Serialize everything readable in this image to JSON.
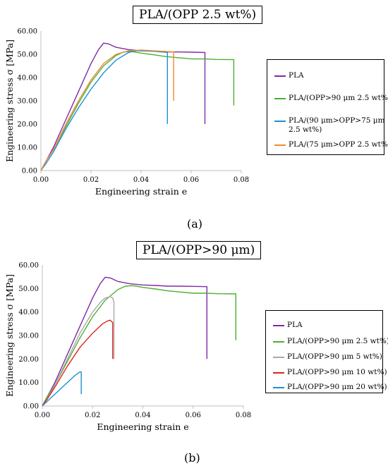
{
  "chart_data": [
    {
      "type": "line",
      "title": "PLA/(OPP 2.5 wt%)",
      "panel_label": "(a)",
      "xlabel": "Engineering strain e",
      "ylabel": "Engineering stress σ [MPa]",
      "xlim": [
        0,
        0.08
      ],
      "ylim": [
        0,
        60
      ],
      "xticks": [
        "0.00",
        "0.02",
        "0.04",
        "0.06",
        "0.08"
      ],
      "yticks": [
        "0.00",
        "10.00",
        "20.00",
        "30.00",
        "40.00",
        "50.00",
        "60.00"
      ],
      "grid": false,
      "legend_position": "right",
      "series": [
        {
          "name": "PLA",
          "color": "#7f2aa8",
          "points": [
            [
              0,
              0
            ],
            [
              0.002,
              4
            ],
            [
              0.005,
              10
            ],
            [
              0.01,
              22
            ],
            [
              0.015,
              34
            ],
            [
              0.02,
              46
            ],
            [
              0.023,
              52
            ],
            [
              0.025,
              54.8
            ],
            [
              0.027,
              54.5
            ],
            [
              0.03,
              53
            ],
            [
              0.035,
              52
            ],
            [
              0.04,
              51.5
            ],
            [
              0.045,
              51.3
            ],
            [
              0.05,
              51
            ],
            [
              0.055,
              51
            ],
            [
              0.06,
              50.9
            ],
            [
              0.0655,
              50.8
            ],
            [
              0.0655,
              20
            ]
          ]
        },
        {
          "name": "PLA/(OPP>90 μm 2.5 wt%)",
          "color": "#4caf2e",
          "points": [
            [
              0,
              0
            ],
            [
              0.002,
              4
            ],
            [
              0.005,
              9
            ],
            [
              0.01,
              19
            ],
            [
              0.015,
              29
            ],
            [
              0.02,
              38
            ],
            [
              0.025,
              45
            ],
            [
              0.03,
              49.5
            ],
            [
              0.033,
              51
            ],
            [
              0.036,
              51.2
            ],
            [
              0.04,
              50.5
            ],
            [
              0.045,
              49.8
            ],
            [
              0.05,
              49
            ],
            [
              0.055,
              48.5
            ],
            [
              0.06,
              48
            ],
            [
              0.065,
              48
            ],
            [
              0.07,
              47.8
            ],
            [
              0.077,
              47.7
            ],
            [
              0.077,
              28
            ]
          ]
        },
        {
          "name": "PLA/(90 μm>OPP>75 μm 2.5 wt%)",
          "color": "#1e90d6",
          "points": [
            [
              0,
              0
            ],
            [
              0.002,
              3
            ],
            [
              0.005,
              8
            ],
            [
              0.01,
              18
            ],
            [
              0.015,
              27
            ],
            [
              0.02,
              35
            ],
            [
              0.025,
              42
            ],
            [
              0.03,
              47.5
            ],
            [
              0.035,
              50.8
            ],
            [
              0.038,
              51.5
            ],
            [
              0.042,
              51.5
            ],
            [
              0.045,
              51.3
            ],
            [
              0.048,
              51
            ],
            [
              0.0505,
              50.8
            ],
            [
              0.0505,
              20
            ]
          ]
        },
        {
          "name": "PLA/(75 μm>OPP 2.5 wt%)",
          "color": "#f08a30",
          "points": [
            [
              0,
              0
            ],
            [
              0.002,
              4
            ],
            [
              0.005,
              9
            ],
            [
              0.01,
              20
            ],
            [
              0.015,
              30
            ],
            [
              0.02,
              39
            ],
            [
              0.025,
              46
            ],
            [
              0.03,
              50
            ],
            [
              0.035,
              51.5
            ],
            [
              0.04,
              51.8
            ],
            [
              0.045,
              51.5
            ],
            [
              0.05,
              51.2
            ],
            [
              0.053,
              51
            ],
            [
              0.053,
              30
            ]
          ]
        }
      ]
    },
    {
      "type": "line",
      "title": "PLA/(OPP>90 μm)",
      "panel_label": "(b)",
      "xlabel": "Engineering strain e",
      "ylabel": "Engineering stress σ [MPa]",
      "xlim": [
        0,
        0.08
      ],
      "ylim": [
        0,
        60
      ],
      "xticks": [
        "0.00",
        "0.02",
        "0.04",
        "0.06",
        "0.08"
      ],
      "yticks": [
        "0.00",
        "10.00",
        "20.00",
        "30.00",
        "40.00",
        "50.00",
        "60.00"
      ],
      "grid": false,
      "legend_position": "right",
      "series": [
        {
          "name": "PLA",
          "color": "#7f2aa8",
          "points": [
            [
              0,
              0
            ],
            [
              0.002,
              4
            ],
            [
              0.005,
              10
            ],
            [
              0.01,
              22
            ],
            [
              0.015,
              34
            ],
            [
              0.02,
              46
            ],
            [
              0.023,
              52
            ],
            [
              0.025,
              54.8
            ],
            [
              0.027,
              54.5
            ],
            [
              0.03,
              53
            ],
            [
              0.035,
              52
            ],
            [
              0.04,
              51.5
            ],
            [
              0.045,
              51.3
            ],
            [
              0.05,
              51
            ],
            [
              0.055,
              51
            ],
            [
              0.06,
              50.9
            ],
            [
              0.0655,
              50.8
            ],
            [
              0.0655,
              20
            ]
          ]
        },
        {
          "name": "PLA/(OPP>90 μm 2.5 wt%)",
          "color": "#4caf2e",
          "points": [
            [
              0,
              0
            ],
            [
              0.002,
              4
            ],
            [
              0.005,
              9
            ],
            [
              0.01,
              19
            ],
            [
              0.015,
              29
            ],
            [
              0.02,
              38
            ],
            [
              0.025,
              45
            ],
            [
              0.03,
              49.5
            ],
            [
              0.033,
              51
            ],
            [
              0.036,
              51.2
            ],
            [
              0.04,
              50.5
            ],
            [
              0.045,
              49.8
            ],
            [
              0.05,
              49
            ],
            [
              0.055,
              48.5
            ],
            [
              0.06,
              48
            ],
            [
              0.065,
              48
            ],
            [
              0.07,
              47.8
            ],
            [
              0.077,
              47.7
            ],
            [
              0.077,
              28
            ]
          ]
        },
        {
          "name": "PLA/(OPP>90 μm 5 wt%)",
          "color": "#a8a8a8",
          "points": [
            [
              0,
              0
            ],
            [
              0.002,
              3
            ],
            [
              0.005,
              9
            ],
            [
              0.01,
              20
            ],
            [
              0.015,
              31
            ],
            [
              0.02,
              40
            ],
            [
              0.023,
              44
            ],
            [
              0.025,
              46
            ],
            [
              0.027,
              46.5
            ],
            [
              0.028,
              46
            ],
            [
              0.0285,
              44
            ],
            [
              0.0285,
              20
            ]
          ]
        },
        {
          "name": "PLA/(OPP>90 μm 10 wt%)",
          "color": "#e0201c",
          "points": [
            [
              0,
              0
            ],
            [
              0.002,
              3
            ],
            [
              0.005,
              8
            ],
            [
              0.01,
              17
            ],
            [
              0.015,
              25
            ],
            [
              0.02,
              31
            ],
            [
              0.024,
              35
            ],
            [
              0.026,
              36.2
            ],
            [
              0.027,
              36.5
            ],
            [
              0.028,
              35.5
            ],
            [
              0.028,
              20
            ]
          ]
        },
        {
          "name": "PLA/(OPP>90 μm 20 wt%)",
          "color": "#1e90d6",
          "points": [
            [
              0,
              0
            ],
            [
              0.002,
              2
            ],
            [
              0.005,
              5
            ],
            [
              0.008,
              8
            ],
            [
              0.011,
              11
            ],
            [
              0.013,
              13
            ],
            [
              0.015,
              14.5
            ],
            [
              0.0155,
              14.5
            ],
            [
              0.0155,
              5
            ]
          ]
        }
      ]
    }
  ]
}
